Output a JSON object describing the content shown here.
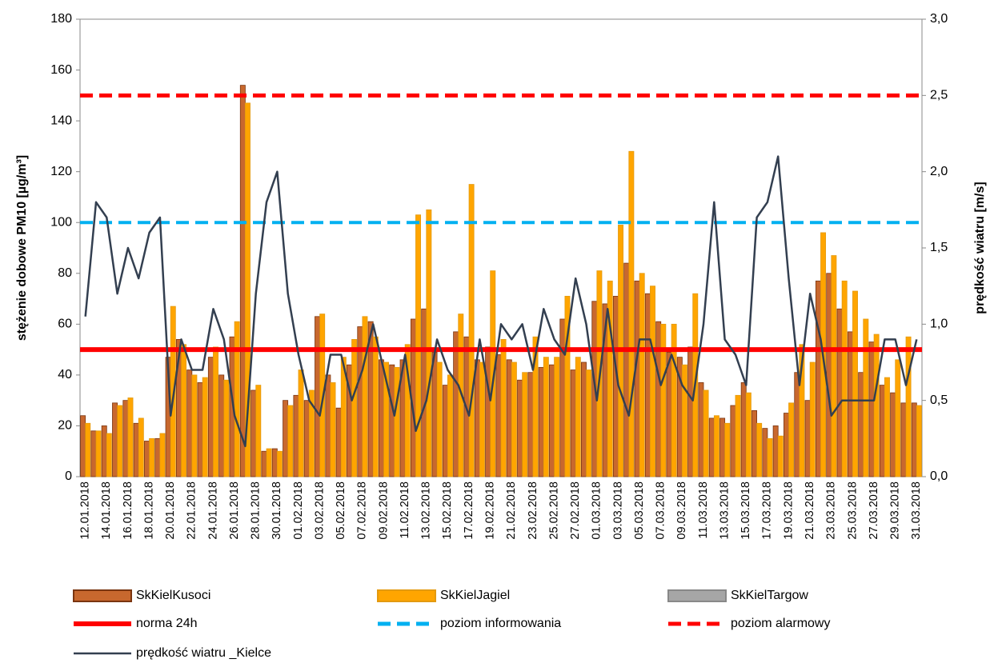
{
  "chart_data": {
    "type": "bar",
    "ylabel": "stężenie dobowe PM10 [µg/m³]",
    "y2label": "prędkość wiatru [m/s]",
    "categories": [
      "12.01.2018",
      null,
      "14.01.2018",
      null,
      "16.01.2018",
      null,
      "18.01.2018",
      null,
      "20.01.2018",
      null,
      "22.01.2018",
      null,
      "24.01.2018",
      null,
      "26.01.2018",
      null,
      "28.01.2018",
      null,
      "30.01.2018",
      null,
      "01.02.2018",
      null,
      "03.02.2018",
      null,
      "05.02.2018",
      null,
      "07.02.2018",
      null,
      "09.02.2018",
      null,
      "11.02.2018",
      null,
      "13.02.2018",
      null,
      "15.02.2018",
      null,
      "17.02.2018",
      null,
      "19.02.2018",
      null,
      "21.02.2018",
      null,
      "23.02.2018",
      null,
      "25.02.2018",
      null,
      "27.02.2018",
      null,
      "01.03.2018",
      null,
      "03.03.2018",
      null,
      "05.03.2018",
      null,
      "07.03.2018",
      null,
      "09.03.2018",
      null,
      "11.03.2018",
      null,
      "13.03.2018",
      null,
      "15.03.2018",
      null,
      "17.03.2018",
      null,
      "19.03.2018",
      null,
      "21.03.2018",
      null,
      "23.03.2018",
      null,
      "25.03.2018",
      null,
      "27.03.2018",
      null,
      "29.03.2018",
      null,
      "31.03.2018"
    ],
    "series": [
      {
        "name": "SkKielKusoci",
        "type": "bar",
        "color": "#c8682e",
        "values": [
          24,
          18,
          20,
          29,
          30,
          21,
          14,
          15,
          47,
          54,
          42,
          37,
          47,
          40,
          55,
          154,
          34,
          10,
          11,
          30,
          32,
          30,
          63,
          40,
          27,
          44,
          59,
          61,
          46,
          44,
          46,
          62,
          66,
          49,
          36,
          57,
          55,
          46,
          51,
          48,
          46,
          38,
          41,
          43,
          44,
          62,
          42,
          45,
          69,
          68,
          71,
          84,
          77,
          72,
          61,
          49,
          47,
          51,
          37,
          23,
          23,
          28,
          37,
          26,
          19,
          20,
          25,
          41,
          30,
          77,
          80,
          66,
          57,
          41,
          53,
          36,
          33,
          29,
          29
        ]
      },
      {
        "name": "SkKielJagiel",
        "type": "bar",
        "color": "#ffa500",
        "values": [
          21,
          18,
          17,
          28,
          31,
          23,
          15,
          17,
          67,
          52,
          40,
          39,
          51,
          38,
          61,
          147,
          36,
          11,
          10,
          28,
          42,
          34,
          64,
          37,
          47,
          54,
          63,
          55,
          45,
          43,
          52,
          103,
          105,
          45,
          40,
          64,
          115,
          45,
          81,
          54,
          45,
          41,
          55,
          47,
          47,
          71,
          47,
          42,
          81,
          77,
          99,
          128,
          80,
          75,
          60,
          60,
          44,
          72,
          34,
          24,
          21,
          32,
          33,
          21,
          15,
          16,
          29,
          52,
          45,
          96,
          87,
          77,
          73,
          62,
          56,
          39,
          46,
          55,
          28
        ]
      },
      {
        "name": "SkKielTargow",
        "type": "bar",
        "color": "#a6a6a6",
        "values": [
          null,
          null,
          null,
          null,
          null,
          null,
          null,
          null,
          null,
          null,
          null,
          null,
          null,
          null,
          null,
          null,
          null,
          null,
          null,
          null,
          null,
          null,
          null,
          null,
          null,
          null,
          null,
          null,
          null,
          null,
          null,
          null,
          null,
          null,
          null,
          null,
          null,
          null,
          null,
          null,
          null,
          null,
          null,
          null,
          null,
          null,
          null,
          null,
          null,
          null,
          null,
          null,
          null,
          null,
          null,
          null,
          null,
          null,
          null,
          null,
          null,
          null,
          null,
          null,
          null,
          null,
          null,
          null,
          null,
          null,
          null,
          null,
          null,
          null,
          null,
          null,
          null,
          null,
          null
        ]
      },
      {
        "name": "prędkość wiatru _Kielce",
        "type": "line",
        "axis": "y2",
        "color": "#333f50",
        "values": [
          1.05,
          1.8,
          1.7,
          1.2,
          1.5,
          1.3,
          1.6,
          1.7,
          0.4,
          0.9,
          0.7,
          0.7,
          1.1,
          0.9,
          0.4,
          0.2,
          1.2,
          1.8,
          2.0,
          1.2,
          0.8,
          0.5,
          0.4,
          0.8,
          0.8,
          0.5,
          0.7,
          1.0,
          0.7,
          0.4,
          0.8,
          0.3,
          0.5,
          0.9,
          0.7,
          0.6,
          0.4,
          0.9,
          0.5,
          1.0,
          0.9,
          1.0,
          0.7,
          1.1,
          0.9,
          0.8,
          1.3,
          1.0,
          0.5,
          1.1,
          0.6,
          0.4,
          0.9,
          0.9,
          0.6,
          0.8,
          0.6,
          0.5,
          1.0,
          1.8,
          0.9,
          0.8,
          0.6,
          1.7,
          1.8,
          2.1,
          1.3,
          0.6,
          1.2,
          0.9,
          0.4,
          0.5,
          0.5,
          0.5,
          0.5,
          0.9,
          0.9,
          0.6,
          0.9
        ]
      }
    ],
    "reference_lines": [
      {
        "name": "norma 24h",
        "value": 50,
        "color": "#ff0000",
        "style": "solid"
      },
      {
        "name": "poziom informowania",
        "value": 100,
        "color": "#00b0f0",
        "style": "dashed"
      },
      {
        "name": "poziom alarmowy",
        "value": 150,
        "color": "#ff0000",
        "style": "dashed"
      }
    ],
    "ylim": [
      0,
      180
    ],
    "yticks": [
      0,
      20,
      40,
      60,
      80,
      100,
      120,
      140,
      160,
      180
    ],
    "y2lim": [
      0,
      3
    ],
    "y2ticks": [
      {
        "value": 0,
        "label": "0,0"
      },
      {
        "value": 0.5,
        "label": "0,5"
      },
      {
        "value": 1,
        "label": "1,0"
      },
      {
        "value": 1.5,
        "label": "1,5"
      },
      {
        "value": 2,
        "label": "2,0"
      },
      {
        "value": 2.5,
        "label": "2,5"
      },
      {
        "value": 3,
        "label": "3,0"
      }
    ],
    "legend": "bottom"
  }
}
